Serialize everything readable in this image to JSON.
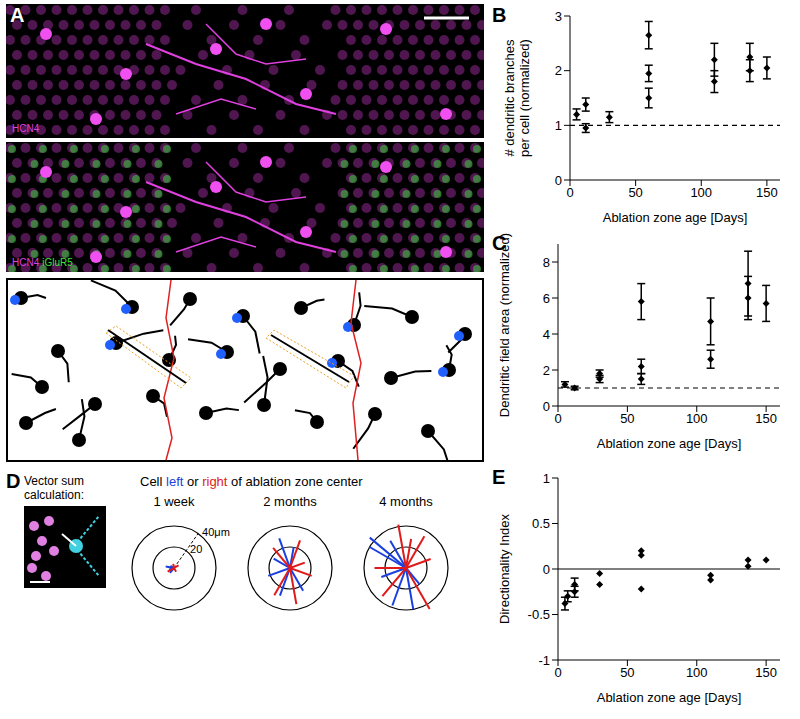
{
  "chart_data": [
    {
      "panel": "B",
      "type": "scatter",
      "marker": "diamond",
      "color": "#000000",
      "xlabel": "Ablation zone age [Days]",
      "ylabel": [
        "# dendritic branches",
        "per cell (normalized)"
      ],
      "x": [
        5,
        12,
        12,
        30,
        60,
        60,
        60,
        110,
        110,
        137,
        137,
        150
      ],
      "values": [
        1.2,
        0.95,
        1.38,
        1.15,
        1.5,
        1.95,
        2.65,
        1.8,
        2.2,
        2.0,
        2.25,
        2.05
      ],
      "errors": [
        0.1,
        0.08,
        0.12,
        0.1,
        0.18,
        0.15,
        0.25,
        0.2,
        0.3,
        0.2,
        0.25,
        0.2
      ],
      "xlim": [
        0,
        160
      ],
      "xticks": [
        0,
        50,
        100,
        150
      ],
      "ylim": [
        0,
        3
      ],
      "yticks": [
        0,
        1,
        2,
        3
      ],
      "reference_line": {
        "y": 1,
        "line_style": "dashed"
      }
    },
    {
      "panel": "C",
      "type": "scatter",
      "marker": "diamond",
      "color": "#000000",
      "xlabel": "Ablation zone age [Days]",
      "ylabel": [
        "Dendritic field area (normalized)"
      ],
      "x": [
        5,
        12,
        30,
        30,
        60,
        60,
        60,
        110,
        110,
        137,
        137,
        150
      ],
      "values": [
        1.2,
        1.0,
        1.5,
        1.8,
        1.5,
        2.2,
        5.8,
        2.6,
        4.7,
        6.0,
        6.8,
        5.7
      ],
      "errors": [
        0.15,
        0.1,
        0.2,
        0.2,
        0.3,
        0.4,
        1.0,
        0.5,
        1.3,
        1.2,
        1.8,
        1.0
      ],
      "xlim": [
        0,
        160
      ],
      "xticks": [
        0,
        50,
        100,
        150
      ],
      "ylim": [
        0,
        9
      ],
      "yticks": [
        0,
        2,
        4,
        6,
        8
      ],
      "reference_line": {
        "y": 1,
        "line_style": "dashed"
      }
    },
    {
      "panel": "E",
      "type": "scatter",
      "marker": "diamond",
      "color": "#000000",
      "xlabel": "Ablation zone age [Days]",
      "ylabel": [
        "Directionality Index"
      ],
      "x": [
        5,
        7,
        12,
        12,
        30,
        30,
        60,
        60,
        60,
        110,
        110,
        137,
        137,
        150
      ],
      "values": [
        -0.38,
        -0.3,
        -0.25,
        -0.17,
        -0.05,
        -0.17,
        0.2,
        0.15,
        -0.22,
        -0.07,
        -0.12,
        0.1,
        0.03,
        0.1
      ],
      "errors": [
        0.07,
        0.06,
        0.06,
        0.07,
        null,
        null,
        null,
        null,
        null,
        null,
        null,
        null,
        null,
        null
      ],
      "xlim": [
        0,
        160
      ],
      "xticks": [
        0,
        50,
        100,
        150
      ],
      "ylim": [
        -1,
        1
      ],
      "yticks": [
        -1,
        -0.5,
        0,
        0.5,
        1
      ],
      "reference_line": {
        "y": 0,
        "line_style": "solid"
      }
    }
  ],
  "panel_a": {
    "panel": "A",
    "images": [
      {
        "labels": [
          {
            "text": "HCN4",
            "color": "#e040e0"
          }
        ]
      },
      {
        "labels": [
          {
            "text": "HCN4",
            "color": "#e040e0"
          },
          {
            "text": "iGluR5",
            "color": "#40e040"
          }
        ]
      }
    ]
  },
  "panel_d": {
    "panel": "D",
    "inset_title": "Vector sum calculation:",
    "caption": [
      "Cell",
      "left",
      "or",
      "right",
      "of ablation zone center"
    ],
    "rings": [
      20,
      {
        "value": 40,
        "label": "40μm"
      }
    ],
    "plots": [
      {
        "title": "1 week",
        "series": [
          {
            "name": "left",
            "color": "#1a3fe0",
            "vectors": [
              [
                200,
                5
              ],
              [
                170,
                8
              ],
              [
                230,
                6
              ],
              [
                150,
                4
              ]
            ]
          },
          {
            "name": "right",
            "color": "#e01a1a",
            "vectors": [
              [
                30,
                5
              ],
              [
                210,
                7
              ],
              [
                100,
                4
              ],
              [
                300,
                4
              ]
            ]
          }
        ]
      },
      {
        "title": "2 months",
        "series": [
          {
            "name": "left",
            "color": "#1a3fe0",
            "vectors": [
              [
                110,
                30
              ],
              [
                250,
                28
              ],
              [
                300,
                25
              ],
              [
                200,
                22
              ],
              [
                150,
                18
              ],
              [
                80,
                20
              ]
            ]
          },
          {
            "name": "right",
            "color": "#e01a1a",
            "vectors": [
              [
                70,
                28
              ],
              [
                240,
                30
              ],
              [
                20,
                15
              ],
              [
                130,
                25
              ],
              [
                280,
                35
              ],
              [
                340,
                22
              ]
            ]
          }
        ]
      },
      {
        "title": "4 months",
        "series": [
          {
            "name": "left",
            "color": "#1a3fe0",
            "vectors": [
              [
                140,
                45
              ],
              [
                150,
                40
              ],
              [
                250,
                38
              ],
              [
                280,
                40
              ],
              [
                120,
                30
              ],
              [
                200,
                25
              ],
              [
                310,
                20
              ]
            ]
          },
          {
            "name": "right",
            "color": "#e01a1a",
            "vectors": [
              [
                300,
                45
              ],
              [
                60,
                35
              ],
              [
                100,
                42
              ],
              [
                180,
                30
              ],
              [
                230,
                35
              ],
              [
                20,
                25
              ],
              [
                80,
                28
              ]
            ]
          }
        ]
      }
    ]
  }
}
